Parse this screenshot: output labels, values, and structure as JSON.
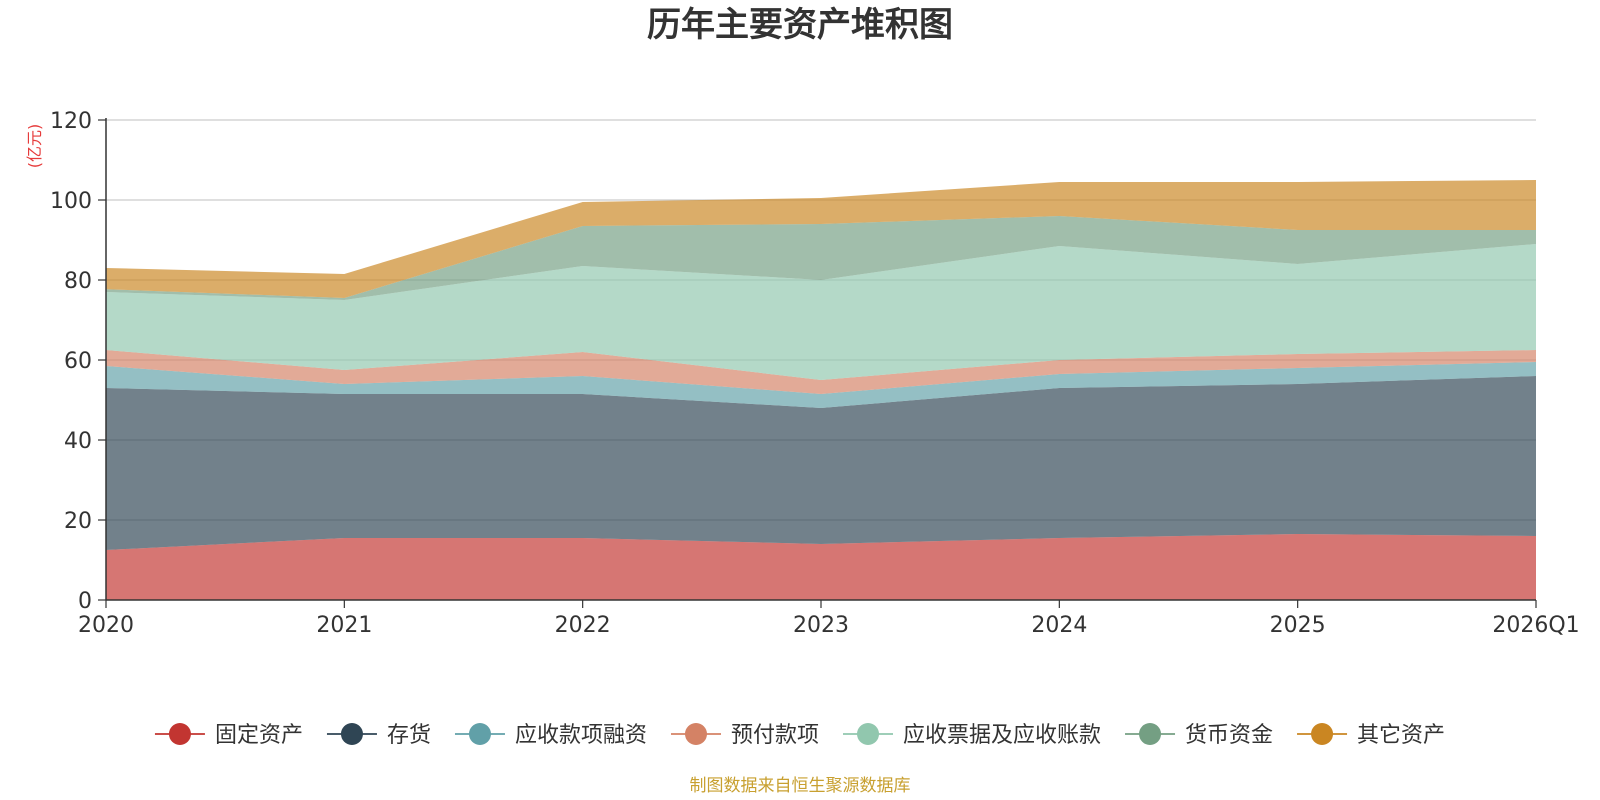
{
  "chart_data": {
    "type": "area",
    "stacked": true,
    "title": "历年主要资产堆积图",
    "unit_label": "(亿元)",
    "source_note": "制图数据来自恒生聚源数据库",
    "x": [
      "2020",
      "2021",
      "2022",
      "2023",
      "2024",
      "2025",
      "2026Q1"
    ],
    "ylim": [
      0,
      120
    ],
    "yticks": [
      0,
      20,
      40,
      60,
      80,
      100,
      120
    ],
    "grid": true,
    "legend_position": "bottom",
    "series": [
      {
        "name": "固定资产",
        "color": "#c23531",
        "values": [
          12.5,
          15.5,
          15.5,
          14.0,
          15.5,
          16.5,
          16.0
        ]
      },
      {
        "name": "存货",
        "color": "#2f4554",
        "values": [
          40.5,
          36.0,
          36.0,
          34.0,
          37.5,
          37.5,
          40.0
        ]
      },
      {
        "name": "应收款项融资",
        "color": "#61a0a8",
        "values": [
          5.5,
          2.5,
          4.5,
          3.5,
          3.5,
          4.0,
          3.5
        ]
      },
      {
        "name": "预付款项",
        "color": "#d48265",
        "values": [
          4.0,
          3.5,
          6.0,
          3.5,
          3.5,
          3.5,
          3.0
        ]
      },
      {
        "name": "应收票据及应收账款",
        "color": "#91c7ae",
        "values": [
          14.5,
          17.5,
          21.5,
          25.0,
          28.5,
          22.5,
          26.5
        ]
      },
      {
        "name": "货币资金",
        "color": "#749f83",
        "values": [
          0.7,
          0.5,
          10.0,
          14.0,
          7.5,
          8.5,
          3.5
        ]
      },
      {
        "name": "其它资产",
        "color": "#ca8622",
        "values": [
          5.3,
          6.0,
          6.0,
          6.5,
          8.5,
          12.0,
          12.5
        ]
      }
    ]
  }
}
